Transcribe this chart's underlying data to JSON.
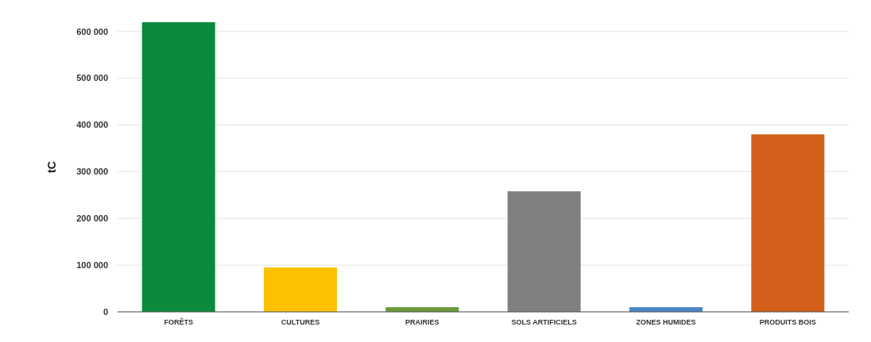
{
  "chart_data": {
    "type": "bar",
    "ylabel": "tC",
    "categories": [
      "FORÊTS",
      "CULTURES",
      "PRAIRIES",
      "SOLS ARTIFICIELS",
      "ZONES HUMIDES",
      "PRODUITS BOIS"
    ],
    "values": [
      620000,
      95000,
      10000,
      258000,
      10000,
      380000
    ],
    "colors": [
      "#0a8a3c",
      "#fcc200",
      "#6a9a3a",
      "#808080",
      "#4a86c8",
      "#d2601a"
    ],
    "ylim": [
      0,
      620000
    ],
    "yticks": [
      {
        "value": 0,
        "label": "0"
      },
      {
        "value": 100000,
        "label": "100 000"
      },
      {
        "value": 200000,
        "label": "200 000"
      },
      {
        "value": 300000,
        "label": "300 000"
      },
      {
        "value": 400000,
        "label": "400 000"
      },
      {
        "value": 500000,
        "label": "500 000"
      },
      {
        "value": 600000,
        "label": "600 000"
      }
    ],
    "grid": "y"
  }
}
